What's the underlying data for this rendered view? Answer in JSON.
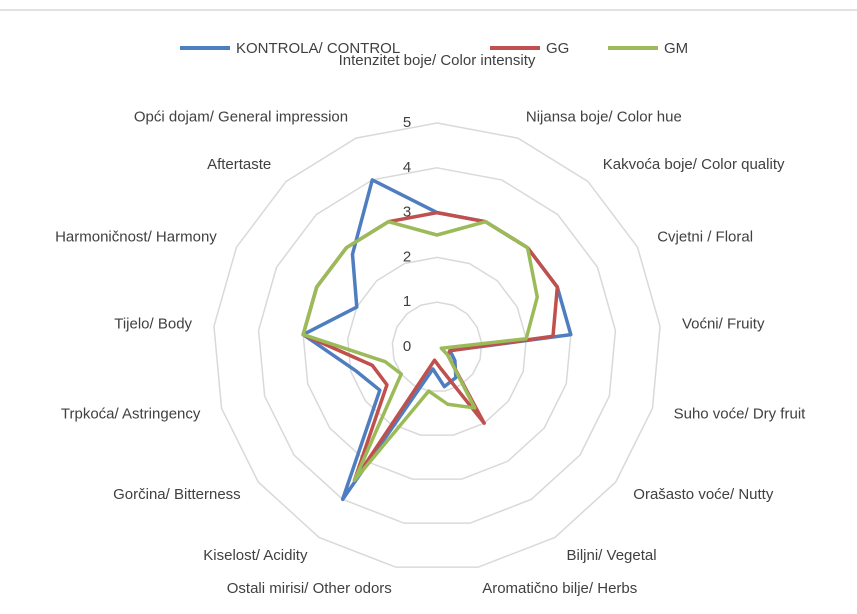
{
  "chart_data": {
    "type": "radar",
    "categories": [
      "Intenzitet boje/ Color intensity",
      "Nijansa boje/ Color hue",
      "Kakvoća boje/ Color quality",
      "Cvjetni / Floral",
      "Voćni/ Fruity",
      "Suho voće/ Dry fruit",
      "Orašasto voće/ Nutty",
      "Biljni/ Vegetal",
      "Aromatično bilje/ Herbs",
      "Ostali mirisi/ Other odors",
      "Kiselost/ Acidity",
      "Gorčina/ Bitterness",
      "Trpkoća/ Astringency",
      "Tijelo/ Body",
      "Harmoničnost/ Harmony",
      "Aftertaste",
      "Opći dojam/ General impression"
    ],
    "series": [
      {
        "name": "KONTROLA/ CONTROL",
        "color": "#4f7ec0",
        "values": [
          3.0,
          3.0,
          3.0,
          3.0,
          3.0,
          0.3,
          0.5,
          0.8,
          0.9,
          0.5,
          4.0,
          1.6,
          1.9,
          3.0,
          2.0,
          2.8,
          4.0
        ]
      },
      {
        "name": "GG",
        "color": "#c0504d",
        "values": [
          3.0,
          3.0,
          3.0,
          3.0,
          2.6,
          0.3,
          0.3,
          2.0,
          0.5,
          0.3,
          3.5,
          1.4,
          1.5,
          3.0,
          3.0,
          3.0,
          3.0
        ]
      },
      {
        "name": "GM",
        "color": "#9bbb59",
        "values": [
          2.5,
          3.0,
          3.0,
          2.5,
          2.0,
          0.1,
          0.3,
          1.6,
          1.3,
          1.0,
          3.5,
          1.0,
          1.2,
          3.0,
          3.0,
          3.0,
          3.0
        ]
      }
    ],
    "ylim": [
      0,
      5
    ],
    "yticks": [
      0,
      1,
      2,
      3,
      4,
      5
    ],
    "legend": "top"
  }
}
